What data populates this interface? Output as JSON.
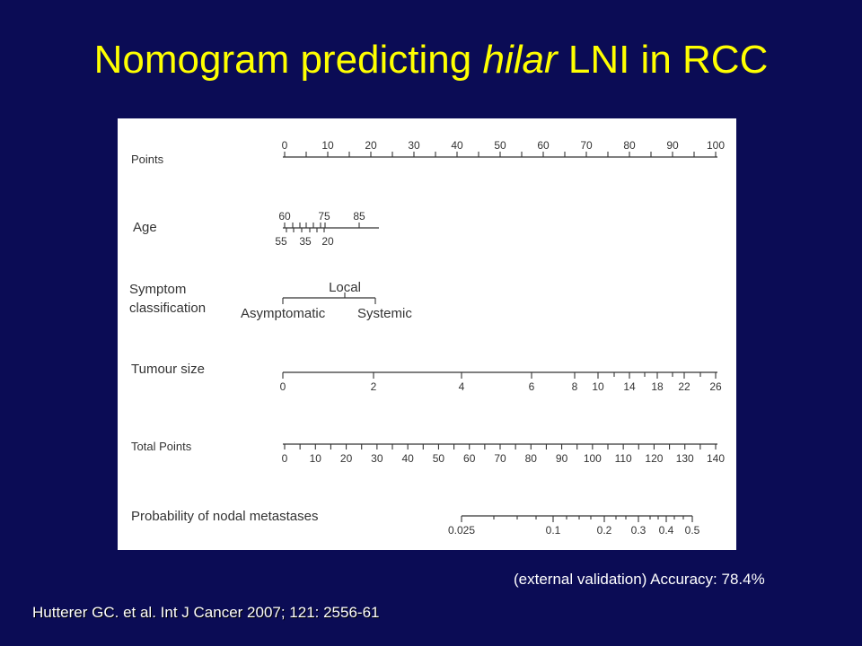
{
  "title": {
    "before": "Nomogram predicting ",
    "italic": "hilar",
    "after": " LNI in RCC"
  },
  "nomogram": {
    "rows": {
      "points": "Points",
      "age": "Age",
      "symptom_line1": "Symptom",
      "symptom_line2": "classification",
      "tumour": "Tumour size",
      "total": "Total Points",
      "prob": "Probability of nodal metastases"
    },
    "scales": {
      "points": [
        "0",
        "10",
        "20",
        "30",
        "40",
        "50",
        "60",
        "70",
        "80",
        "90",
        "100"
      ],
      "age_top": [
        "60",
        "75",
        "85"
      ],
      "age_bottom": [
        "55",
        "35",
        "20"
      ],
      "symptom_top": [
        "Local"
      ],
      "symptom_bottom": [
        "Asymptomatic",
        "Systemic"
      ],
      "tumour": [
        "0",
        "2",
        "4",
        "6",
        "8",
        "10",
        "14",
        "18",
        "22",
        "26"
      ],
      "total": [
        "0",
        "10",
        "20",
        "30",
        "40",
        "50",
        "60",
        "70",
        "80",
        "90",
        "100",
        "110",
        "120",
        "130",
        "140"
      ],
      "prob": [
        "0.025",
        "0.1",
        "0.2",
        "0.3",
        "0.4",
        "0.5"
      ]
    },
    "colors": {
      "background": "#0b0c55",
      "title": "#ffff00",
      "panel": "#ffffff",
      "ink": "#333333"
    }
  },
  "accuracy_note": "(external validation) Accuracy: 78.4%",
  "citation": "Hutterer GC. et al. Int J Cancer 2007; 121: 2556-61"
}
